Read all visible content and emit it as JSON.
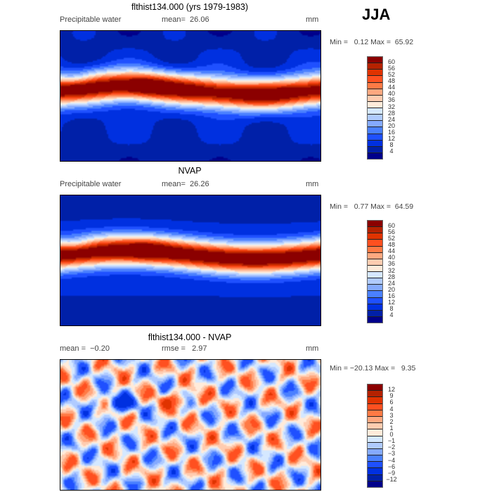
{
  "season": "JJA",
  "colors": [
    "#8b0000",
    "#b52200",
    "#e03300",
    "#ff5020",
    "#ff7a45",
    "#ffa880",
    "#ffccb0",
    "#ffebda",
    "#d5e8ff",
    "#b0cbff",
    "#85aaff",
    "#4a80ff",
    "#1f50ff",
    "#0030e0",
    "#0020a8",
    "#00008a"
  ],
  "panels": [
    {
      "title": "flthist134.000 (yrs 1979-1983)",
      "variable": "Precipitable water",
      "stat1": "mean=  26.06",
      "stat2": "",
      "units": "mm",
      "minmax": "Min =   0.12 Max =  65.92",
      "levels": [
        "60",
        "56",
        "52",
        "48",
        "44",
        "40",
        "36",
        "32",
        "28",
        "24",
        "20",
        "16",
        "12",
        "8",
        "4"
      ],
      "field": "model"
    },
    {
      "title": "NVAP",
      "variable": "Precipitable water",
      "stat1": "mean=  26.26",
      "stat2": "",
      "units": "mm",
      "minmax": "Min =   0.77 Max =  64.59",
      "levels": [
        "60",
        "56",
        "52",
        "48",
        "44",
        "40",
        "36",
        "32",
        "28",
        "24",
        "20",
        "16",
        "12",
        "8",
        "4"
      ],
      "field": "obs"
    },
    {
      "title": "flthist134.000 - NVAP",
      "variable": "",
      "stat1": "mean =  −0.20",
      "stat2": "rmse =   2.97",
      "units": "mm",
      "minmax": "Min = −20.13 Max =   9.35",
      "levels": [
        "12",
        "9",
        "6",
        "4",
        "3",
        "2",
        "1",
        "0",
        "−1",
        "−2",
        "−3",
        "−4",
        "−6",
        "−9",
        "−12"
      ],
      "field": "diff"
    }
  ]
}
